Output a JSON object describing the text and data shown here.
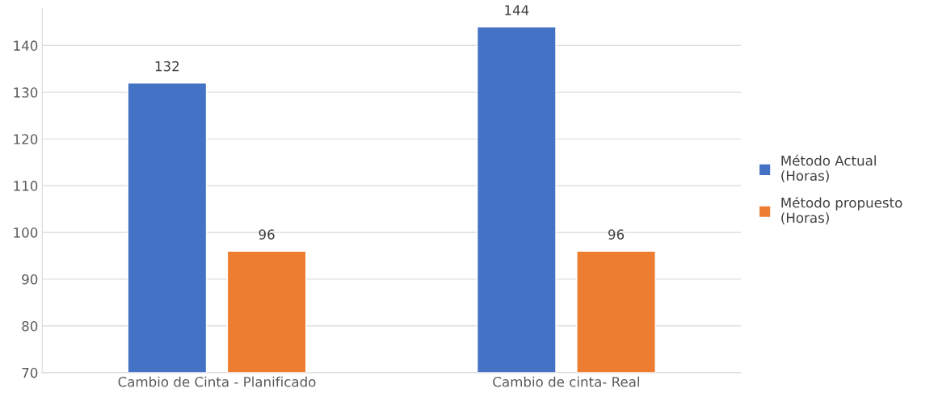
{
  "chart_data": {
    "type": "bar",
    "categories": [
      "Cambio de Cinta - Planificado",
      "Cambio de cinta- Real"
    ],
    "series": [
      {
        "name": "Método Actual\n(Horas)",
        "color": "#4472c4",
        "values": [
          132,
          144
        ]
      },
      {
        "name": "Método propuesto\n(Horas)",
        "color": "#ed7d31",
        "values": [
          96,
          96
        ]
      }
    ],
    "ylim": [
      70,
      148
    ],
    "yticks": [
      70,
      80,
      90,
      100,
      110,
      120,
      130,
      140
    ],
    "grid": "y",
    "legend": "right",
    "data_labels": true
  }
}
